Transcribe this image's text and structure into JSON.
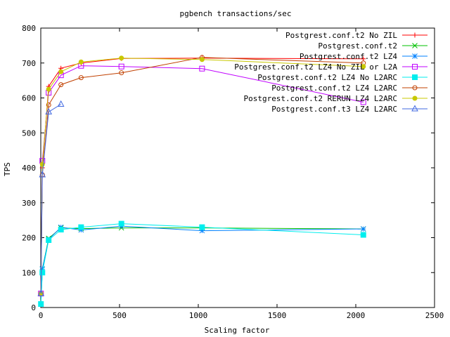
{
  "chart_data": {
    "type": "line",
    "title": "pgbench transactions/sec",
    "xlabel": "Scaling factor",
    "ylabel": "TPS",
    "xlim": [
      0,
      2500
    ],
    "ylim": [
      0,
      800
    ],
    "xticks": [
      0,
      500,
      1000,
      1500,
      2000,
      2500
    ],
    "yticks": [
      0,
      100,
      200,
      300,
      400,
      500,
      600,
      700,
      800
    ],
    "xtick_labels": [
      "0",
      "500",
      "1000",
      "1500",
      "2000",
      "2500"
    ],
    "ytick_labels": [
      "0",
      "100",
      "200",
      "300",
      "400",
      "500",
      "600",
      "700",
      "800"
    ],
    "grid": false,
    "legend_position": "top-right",
    "series": [
      {
        "name": "Postgrest.conf.t2 No ZIL",
        "color": "#ff0000",
        "marker": "plus",
        "x": [
          1,
          10,
          50,
          128,
          256,
          512,
          1024,
          2048
        ],
        "y": [
          40,
          400,
          633,
          685,
          700,
          713,
          714,
          712
        ]
      },
      {
        "name": "Postgrest.conf.t2",
        "color": "#00c000",
        "marker": "cross",
        "x": [
          1,
          10,
          50,
          128,
          256,
          512,
          1024,
          2048
        ],
        "y": [
          10,
          110,
          198,
          228,
          226,
          228,
          228,
          225
        ]
      },
      {
        "name": "Postgrest.conf.t2 LZ4",
        "color": "#0080ff",
        "marker": "star",
        "x": [
          1,
          10,
          50,
          128,
          256,
          512,
          1024,
          2048
        ],
        "y": [
          10,
          110,
          195,
          230,
          222,
          233,
          220,
          225
        ]
      },
      {
        "name": "Postgrest.conf.t2 LZ4 No ZIL or L2A",
        "color": "#c000ff",
        "marker": "square",
        "x": [
          1,
          10,
          50,
          128,
          256,
          512,
          1024,
          2048
        ],
        "y": [
          40,
          420,
          615,
          665,
          692,
          690,
          684,
          588
        ]
      },
      {
        "name": "Postgrest.conf.t2 LZ4 No L2ARC",
        "color": "#00eeee",
        "marker": "filled-square",
        "x": [
          1,
          10,
          50,
          128,
          256,
          512,
          1024,
          2048
        ],
        "y": [
          10,
          100,
          193,
          223,
          230,
          240,
          230,
          208
        ]
      },
      {
        "name": "Postgrest.conf.t2 LZ4 L2ARC",
        "color": "#c04000",
        "marker": "circle",
        "x": [
          1,
          10,
          50,
          128,
          256,
          512,
          1024,
          2048
        ],
        "y": [
          40,
          380,
          580,
          638,
          658,
          672,
          716,
          700
        ]
      },
      {
        "name": "Postgrest.conf.t2 RERUN LZ4 L2ARC",
        "color": "#c8c800",
        "marker": "filled-circle",
        "x": [
          1,
          10,
          50,
          128,
          256,
          512,
          1024,
          2048
        ],
        "y": [
          40,
          410,
          625,
          675,
          703,
          714,
          710,
          690
        ]
      },
      {
        "name": "Postgrest.conf.t3 LZ4 L2ARC",
        "color": "#4169e1",
        "marker": "triangle",
        "x": [
          1,
          10,
          50,
          128
        ],
        "y": [
          40,
          380,
          560,
          582
        ]
      }
    ]
  }
}
